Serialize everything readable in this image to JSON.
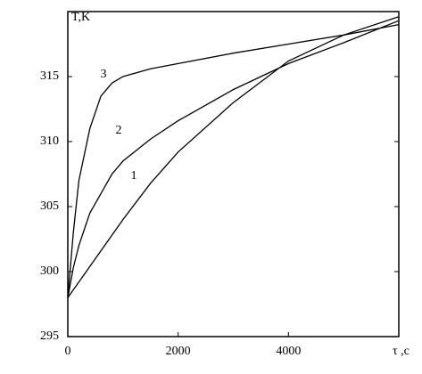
{
  "chart_data": {
    "type": "line",
    "y_label": "T,K",
    "x_label": "τ ,c",
    "x": [
      0,
      100,
      200,
      400,
      600,
      800,
      1000,
      1500,
      2000,
      3000,
      4000,
      5000,
      6000
    ],
    "series": [
      {
        "name": "1",
        "color": "#000000",
        "values": [
          298,
          298.6,
          299.2,
          300.4,
          301.6,
          302.8,
          304,
          306.8,
          309.2,
          313,
          316.2,
          318.2,
          319.6
        ]
      },
      {
        "name": "2",
        "color": "#000000",
        "values": [
          298,
          300.3,
          302,
          304.5,
          306,
          307.5,
          308.5,
          310.2,
          311.6,
          314,
          316,
          317.6,
          319.3
        ]
      },
      {
        "name": "3",
        "color": "#000000",
        "values": [
          298,
          303,
          307,
          311,
          313.5,
          314.5,
          315,
          315.6,
          316,
          316.8,
          317.5,
          318.2,
          319
        ]
      }
    ],
    "xlim": [
      0,
      6000
    ],
    "xticks": [
      0,
      2000,
      4000
    ],
    "ylim": [
      295,
      320
    ],
    "yticks": [
      295,
      300,
      305,
      310,
      315
    ]
  }
}
